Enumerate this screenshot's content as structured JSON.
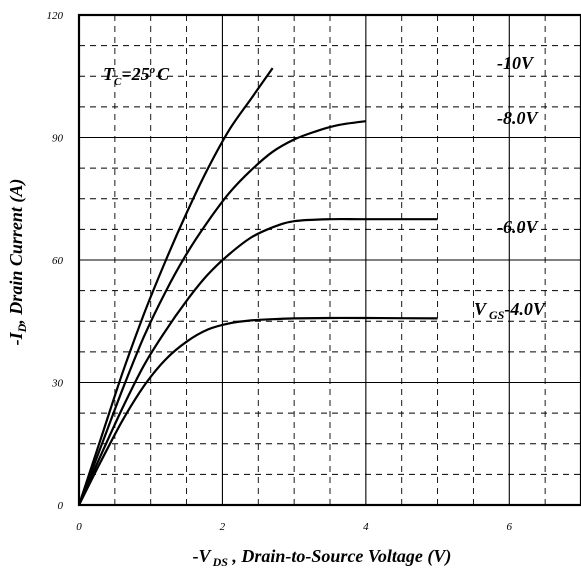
{
  "chart_data": {
    "type": "line",
    "xlabel": {
      "main": "-V",
      "sub": "DS",
      "rest": " , Drain-to-Source Voltage (V)"
    },
    "ylabel": {
      "main": "-I",
      "sub": "D",
      "rest": ", Drain Current (A)"
    },
    "xlim": [
      0,
      7
    ],
    "ylim": [
      0,
      120
    ],
    "x_ticks": [
      0,
      2,
      4,
      6
    ],
    "x_tick_labels": [
      "0",
      "2",
      "4",
      "6"
    ],
    "y_ticks": [
      0,
      30,
      60,
      90,
      120
    ],
    "y_tick_labels": [
      "0",
      "30",
      "60",
      "90",
      "120"
    ],
    "grid": {
      "major": "solid",
      "minor": "dashed"
    },
    "annotation": {
      "text_t": "T",
      "text_sub": "C",
      "text_eq": "=25",
      "text_sup": "o",
      "text_unit": "C"
    },
    "vgs_prefix": {
      "main": "V",
      "sub": "GS"
    },
    "series": [
      {
        "name": "-10V",
        "x": [
          0,
          0.3,
          0.6,
          0.9,
          1.2,
          1.5,
          1.8,
          2.1,
          2.4,
          2.7
        ],
        "y": [
          0,
          16,
          32,
          46.5,
          59.5,
          71.5,
          82.5,
          92,
          99.5,
          107
        ]
      },
      {
        "name": "-8.0V",
        "x": [
          0,
          0.3,
          0.6,
          0.9,
          1.2,
          1.5,
          1.8,
          2.1,
          2.4,
          2.7,
          3.0,
          3.3,
          3.6,
          4.0
        ],
        "y": [
          0,
          14,
          28,
          41,
          52,
          61.5,
          69.5,
          76.5,
          82,
          86.5,
          89.5,
          91.5,
          93,
          94
        ]
      },
      {
        "name": "-6.0V",
        "x": [
          0,
          0.3,
          0.6,
          0.9,
          1.2,
          1.5,
          1.8,
          2.1,
          2.4,
          2.7,
          3.0,
          3.5,
          4.0,
          5.0
        ],
        "y": [
          0,
          12,
          23.5,
          34,
          42.5,
          50,
          56.5,
          61.5,
          65.5,
          68,
          69.5,
          70,
          70,
          70
        ]
      },
      {
        "name": "-4.0V",
        "x": [
          0,
          0.3,
          0.6,
          0.9,
          1.2,
          1.5,
          1.8,
          2.1,
          2.4,
          2.7,
          3.0,
          3.5,
          4.0,
          5.0
        ],
        "y": [
          0,
          10.5,
          20.5,
          29,
          35.5,
          40,
          43,
          44.5,
          45.2,
          45.5,
          45.7,
          45.8,
          45.8,
          45.7
        ]
      }
    ]
  }
}
